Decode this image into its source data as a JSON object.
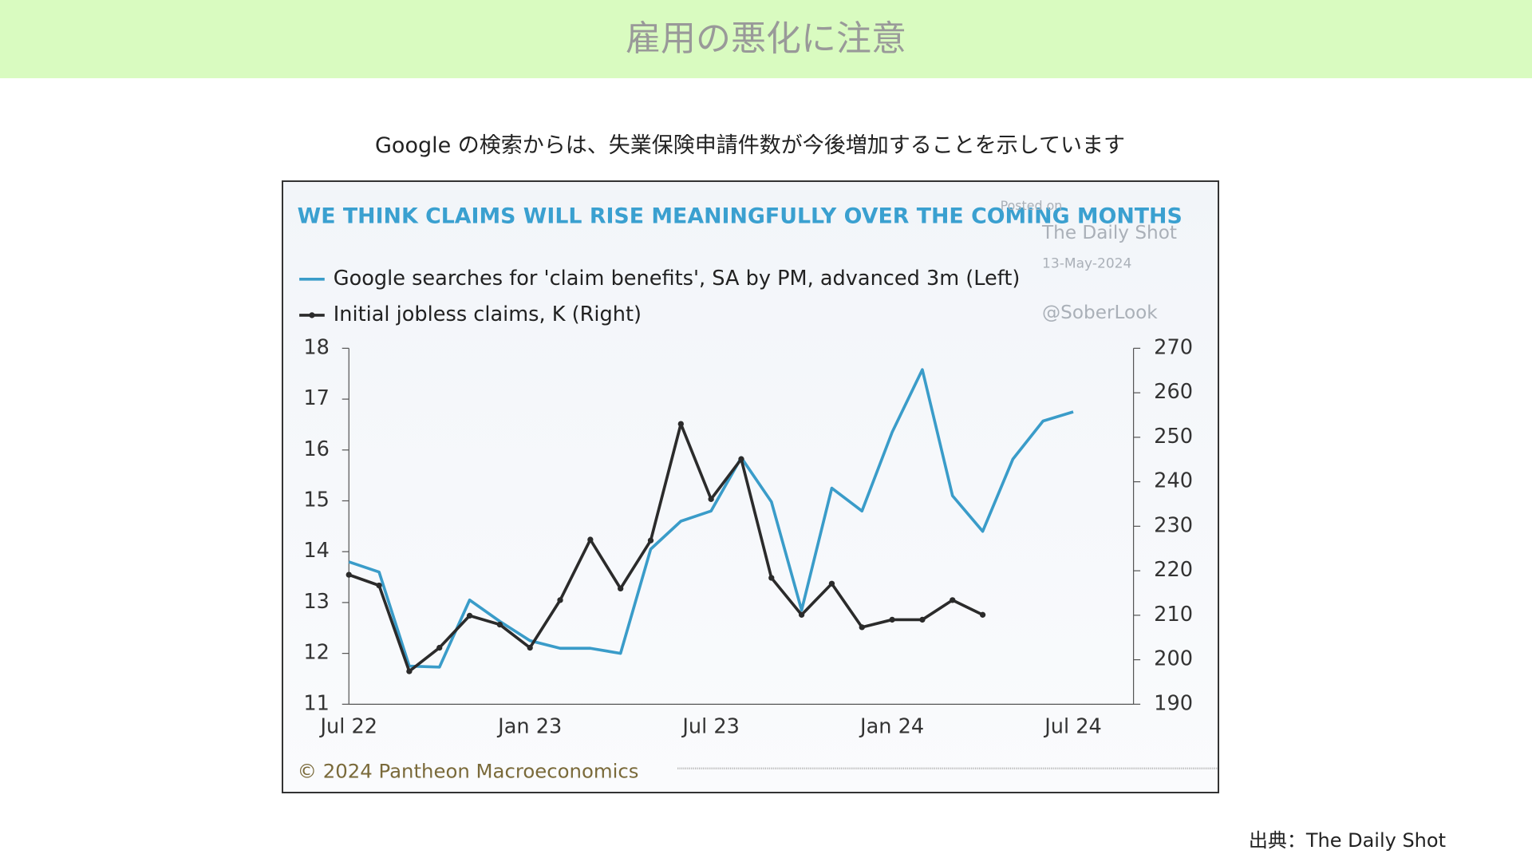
{
  "header": {
    "title": "雇用の悪化に注意"
  },
  "subtitle": "Google の検索からは、失業保険申請件数が今後増加することを示しています",
  "source": "出典：The Daily Shot",
  "chart_data": {
    "type": "line",
    "title": "WE THINK CLAIMS WILL RISE MEANINGFULLY OVER THE COMING MONTHS",
    "annotations": [
      "Posted on",
      "The Daily Shot",
      "13-May-2024",
      "@SoberLook"
    ],
    "footer": "© 2024 Pantheon Macroeconomics",
    "categories": [
      "Jul 22",
      null,
      null,
      null,
      null,
      null,
      "Jan 23",
      null,
      null,
      null,
      null,
      null,
      "Jul 23",
      null,
      null,
      null,
      null,
      null,
      "Jan 24",
      null,
      null,
      null,
      null,
      null,
      "Jul 24"
    ],
    "series": [
      {
        "name": "Google searches for 'claim benefits', SA by PM, advanced 3m (Left)",
        "color": "#3a9cc9",
        "values": [
          13.8,
          13.6,
          11.75,
          11.73,
          13.05,
          12.63,
          12.25,
          12.1,
          12.1,
          12.0,
          14.05,
          14.6,
          14.8,
          15.85,
          14.98,
          12.85,
          15.25,
          14.8,
          16.35,
          17.58,
          15.1,
          14.4,
          15.82,
          16.57,
          16.75
        ]
      },
      {
        "name": "Initial jobless claims, K (Right)",
        "color": "#2b2b2b",
        "axis": "y2",
        "values": [
          219.1,
          216.7,
          197.4,
          202.7,
          209.9,
          207.9,
          202.7,
          213.4,
          227,
          216,
          226.8,
          253,
          236.1,
          245.1,
          218.4,
          210.1,
          217.1,
          207.3,
          209,
          209,
          213.4,
          210.1,
          null,
          null,
          null
        ]
      }
    ],
    "ylim": [
      11,
      18
    ],
    "yticks": [
      11,
      12,
      13,
      14,
      15,
      16,
      17,
      18
    ],
    "y2lim": [
      190,
      270
    ],
    "y2ticks": [
      190,
      200,
      210,
      220,
      230,
      240,
      250,
      260,
      270
    ]
  }
}
